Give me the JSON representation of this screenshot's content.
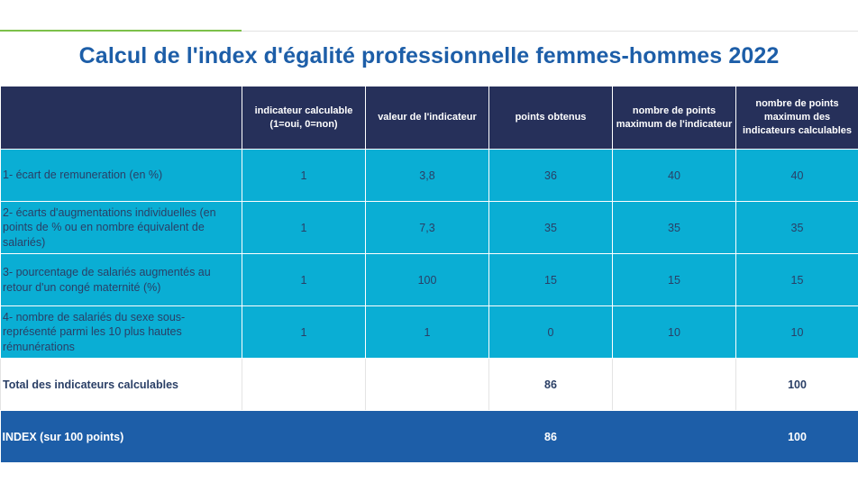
{
  "title": "Calcul de l'index d'égalité professionnelle femmes-hommes 2022",
  "header": {
    "col0": "",
    "col1": "indicateur calculable (1=oui, 0=non)",
    "col2": "valeur de l'indicateur",
    "col3": "points obtenus",
    "col4": "nombre de points maximum de l'indicateur",
    "col5": "nombre de points maximum des indicateurs calculables"
  },
  "rows": [
    {
      "label": "1- écart de remuneration (en %)",
      "calculable": "1",
      "valeur": "3,8",
      "points": "36",
      "max": "40",
      "max_calc": "40"
    },
    {
      "label": "2- écarts d'augmentations individuelles (en points de % ou en nombre équivalent de salariés)",
      "calculable": "1",
      "valeur": "7,3",
      "points": "35",
      "max": "35",
      "max_calc": "35"
    },
    {
      "label": "3- pourcentage de salariés augmentés au retour d'un congé maternité (%)",
      "calculable": "1",
      "valeur": "100",
      "points": "15",
      "max": "15",
      "max_calc": "15"
    },
    {
      "label": "4- nombre de salariés du sexe sous-représenté parmi les 10 plus hautes rémunérations",
      "calculable": "1",
      "valeur": "1",
      "points": "0",
      "max": "10",
      "max_calc": "10"
    }
  ],
  "total": {
    "label": "Total des indicateurs calculables",
    "points": "86",
    "max_calc": "100"
  },
  "index": {
    "label": "INDEX (sur 100 points)",
    "points": "86",
    "max_calc": "100"
  },
  "colors": {
    "title": "#1d5ea8",
    "header_bg": "#26305a",
    "row_bg": "#0aaed4",
    "index_bg": "#1d5ea8",
    "accent_rule": "#7cc04a"
  }
}
